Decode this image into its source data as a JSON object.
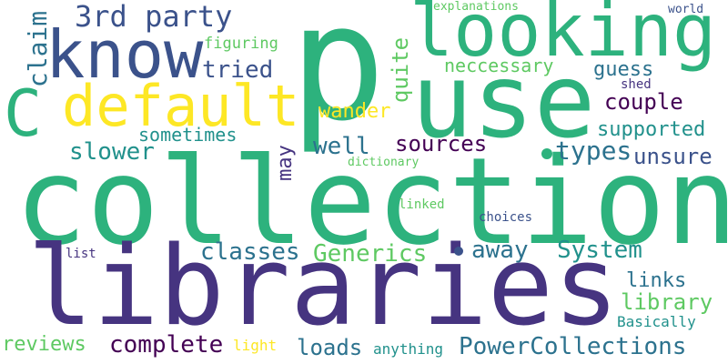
{
  "words": [
    {
      "text": "p",
      "color": "#2db27d"
    },
    {
      "text": "collection",
      "color": "#2db27d"
    },
    {
      "text": "libraries",
      "color": "#463480"
    },
    {
      "text": "use",
      "color": "#2db27d"
    },
    {
      "text": "looking",
      "color": "#2db27d"
    },
    {
      "text": "know",
      "color": "#3b528b"
    },
    {
      "text": "default",
      "color": "#fde725"
    },
    {
      "text": "C",
      "color": "#2db27d"
    },
    {
      "text": "3rd party",
      "color": "#3b528b"
    },
    {
      "text": "claim",
      "color": "#2c728e"
    },
    {
      "text": "tried",
      "color": "#3b528b"
    },
    {
      "text": "figuring",
      "color": "#5ec962"
    },
    {
      "text": "quite",
      "color": "#5ec962"
    },
    {
      "text": "neccessary",
      "color": "#5ec962"
    },
    {
      "text": "guess",
      "color": "#2c728e"
    },
    {
      "text": "couple",
      "color": "#440154"
    },
    {
      "text": "shed",
      "color": "#463480"
    },
    {
      "text": "explanations",
      "color": "#5ec962"
    },
    {
      "text": "world",
      "color": "#3b528b"
    },
    {
      "text": "wander",
      "color": "#fde725"
    },
    {
      "text": "sometimes",
      "color": "#21918c"
    },
    {
      "text": "supported",
      "color": "#21918c"
    },
    {
      "text": "slower",
      "color": "#21918c"
    },
    {
      "text": "well",
      "color": "#2c728e"
    },
    {
      "text": "sources",
      "color": "#440154"
    },
    {
      "text": "types",
      "color": "#2c728e"
    },
    {
      "text": "unsure",
      "color": "#3b528b"
    },
    {
      "text": "may",
      "color": "#463480"
    },
    {
      "text": "dictionary",
      "color": "#5ec962"
    },
    {
      "text": "linked",
      "color": "#5ec962"
    },
    {
      "text": "choices",
      "color": "#3b528b"
    },
    {
      "text": "classes",
      "color": "#2c728e"
    },
    {
      "text": "Generics",
      "color": "#5ec962"
    },
    {
      "text": "away",
      "color": "#2c728e"
    },
    {
      "text": "System",
      "color": "#21918c"
    },
    {
      "text": "list",
      "color": "#463480"
    },
    {
      "text": "links",
      "color": "#2c728e"
    },
    {
      "text": "library",
      "color": "#5ec962"
    },
    {
      "text": "Basically",
      "color": "#21918c"
    },
    {
      "text": "reviews",
      "color": "#5ec962"
    },
    {
      "text": "complete",
      "color": "#440154"
    },
    {
      "text": "light",
      "color": "#fde725"
    },
    {
      "text": "loads",
      "color": "#2c728e"
    },
    {
      "text": "anything",
      "color": "#21918c"
    },
    {
      "text": "PowerCollections",
      "color": "#2c728e"
    }
  ],
  "dots": [
    {
      "color": "#2db27d"
    },
    {
      "color": "#3b528b"
    }
  ]
}
